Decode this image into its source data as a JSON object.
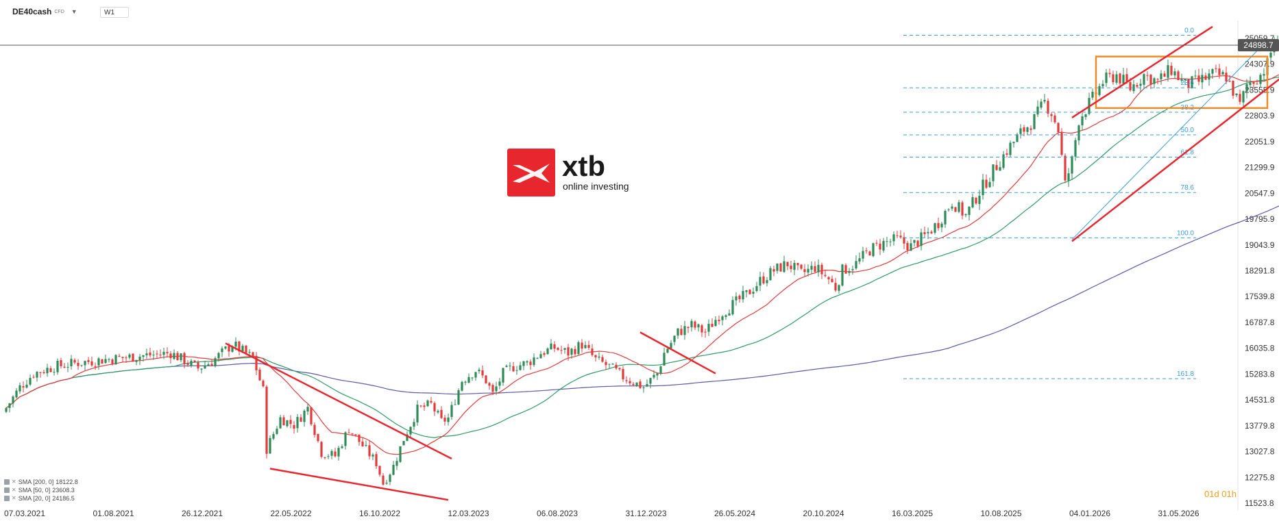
{
  "toolbar": {
    "symbol": "DE40cash",
    "symbol_sub": "CFD",
    "timeframe": "W1"
  },
  "logo": {
    "brand": "xtb",
    "tagline": "online investing",
    "color": "#e8262e"
  },
  "current_price": "24898.7",
  "timer": "01d 01h",
  "legend": [
    {
      "label": "SMA [200, 0]",
      "value": "18122.8",
      "color": "#5a5aa8"
    },
    {
      "label": "SMA [50, 0]",
      "value": "23608.3",
      "color": "#2e9a63"
    },
    {
      "label": "SMA [20, 0]",
      "value": "24186.5",
      "color": "#e23b3b"
    }
  ],
  "chart_data": {
    "type": "candlestick",
    "symbol": "DE40cash",
    "timeframe": "W1",
    "y_axis_ticks": [
      "25059.7",
      "24307.9",
      "23555.9",
      "22803.9",
      "22051.9",
      "21299.9",
      "20547.9",
      "19795.9",
      "19043.9",
      "18291.8",
      "17539.8",
      "16787.8",
      "16035.8",
      "15283.8",
      "14531.8",
      "13779.8",
      "13027.8",
      "12275.8",
      "11523.8"
    ],
    "x_axis_ticks": [
      "07.03.2021",
      "01.08.2021",
      "26.12.2021",
      "22.05.2022",
      "16.10.2022",
      "12.03.2023",
      "06.08.2023",
      "31.12.2023",
      "26.05.2024",
      "20.10.2024",
      "16.03.2025",
      "10.08.2025",
      "04.01.2026",
      "31.05.2026"
    ],
    "ylim": [
      11523.8,
      25059.7
    ],
    "last_price": 24898.7,
    "up_color": "#2e8b57",
    "down_color": "#e23b3b",
    "series_path": [
      [
        0,
        14300
      ],
      [
        4,
        14900
      ],
      [
        8,
        15300
      ],
      [
        14,
        15500
      ],
      [
        20,
        15600
      ],
      [
        28,
        15700
      ],
      [
        38,
        15800
      ],
      [
        48,
        15900
      ],
      [
        56,
        15450
      ],
      [
        60,
        15650
      ],
      [
        66,
        16150
      ],
      [
        72,
        15750
      ],
      [
        75,
        14800
      ],
      [
        76,
        13100
      ],
      [
        80,
        14000
      ],
      [
        84,
        13800
      ],
      [
        88,
        14300
      ],
      [
        92,
        13000
      ],
      [
        96,
        12900
      ],
      [
        100,
        13700
      ],
      [
        104,
        13200
      ],
      [
        108,
        12700
      ],
      [
        110,
        12100
      ],
      [
        113,
        12600
      ],
      [
        116,
        13400
      ],
      [
        120,
        14250
      ],
      [
        124,
        14400
      ],
      [
        127,
        13900
      ],
      [
        129,
        14000
      ],
      [
        133,
        15100
      ],
      [
        137,
        15400
      ],
      [
        140,
        15100
      ],
      [
        142,
        14700
      ],
      [
        145,
        15300
      ],
      [
        148,
        15500
      ],
      [
        152,
        15600
      ],
      [
        156,
        15900
      ],
      [
        160,
        16050
      ],
      [
        164,
        15900
      ],
      [
        168,
        16150
      ],
      [
        172,
        15700
      ],
      [
        176,
        15500
      ],
      [
        180,
        15200
      ],
      [
        184,
        15000
      ],
      [
        186,
        14900
      ],
      [
        190,
        15300
      ],
      [
        192,
        15900
      ],
      [
        196,
        16500
      ],
      [
        200,
        16700
      ],
      [
        204,
        16500
      ],
      [
        208,
        17000
      ],
      [
        212,
        17300
      ],
      [
        216,
        17600
      ],
      [
        220,
        18000
      ],
      [
        224,
        18300
      ],
      [
        228,
        18500
      ],
      [
        232,
        18200
      ],
      [
        236,
        18400
      ],
      [
        240,
        18050
      ],
      [
        242,
        17800
      ],
      [
        244,
        18300
      ],
      [
        248,
        18500
      ],
      [
        252,
        18900
      ],
      [
        256,
        19100
      ],
      [
        260,
        19200
      ],
      [
        264,
        19000
      ],
      [
        268,
        19300
      ],
      [
        272,
        19700
      ],
      [
        276,
        20300
      ],
      [
        280,
        19900
      ],
      [
        284,
        20600
      ],
      [
        288,
        21200
      ],
      [
        292,
        21800
      ],
      [
        296,
        22300
      ],
      [
        300,
        22700
      ],
      [
        303,
        23200
      ],
      [
        305,
        22900
      ],
      [
        307,
        22400
      ],
      [
        309,
        20800
      ],
      [
        311,
        21500
      ],
      [
        313,
        22700
      ],
      [
        317,
        23300
      ],
      [
        320,
        23800
      ],
      [
        324,
        24000
      ],
      [
        328,
        23600
      ],
      [
        332,
        24000
      ],
      [
        336,
        23800
      ],
      [
        340,
        24150
      ],
      [
        344,
        23700
      ],
      [
        348,
        23800
      ],
      [
        352,
        24000
      ],
      [
        356,
        23950
      ],
      [
        360,
        23100
      ],
      [
        362,
        23700
      ],
      [
        366,
        24000
      ],
      [
        368,
        24300
      ],
      [
        370,
        25000
      ],
      [
        372,
        24700
      ]
    ],
    "sma": [
      {
        "name": "SMA [200, 0]",
        "period": 200,
        "color": "#5a5aa8"
      },
      {
        "name": "SMA [50, 0]",
        "period": 50,
        "color": "#2e9a63"
      },
      {
        "name": "SMA [20, 0]",
        "period": 20,
        "color": "#e23b3b"
      }
    ],
    "fibonacci": {
      "color": "#3a9ad9",
      "levels": [
        {
          "label": "0.0",
          "price": 25150
        },
        {
          "label": "23.6",
          "price": 23620
        },
        {
          "label": "38.2",
          "price": 22910
        },
        {
          "label": "50.0",
          "price": 22250
        },
        {
          "label": "61.8",
          "price": 21600
        },
        {
          "label": "78.6",
          "price": 20570
        },
        {
          "label": "100.0",
          "price": 19250
        },
        {
          "label": "161.8",
          "price": 15150
        }
      ]
    },
    "trendlines": [
      {
        "color": "#e8262e",
        "from": [
          64,
          16180
        ],
        "to": [
          130,
          12820
        ]
      },
      {
        "color": "#e8262e",
        "from": [
          77,
          12530
        ],
        "to": [
          129,
          11620
        ]
      },
      {
        "color": "#e8262e",
        "from": [
          185,
          16500
        ],
        "to": [
          207,
          15300
        ]
      },
      {
        "color": "#e8262e",
        "from": [
          311,
          22750
        ],
        "to": [
          352,
          25400
        ]
      },
      {
        "color": "#e8262e",
        "from": [
          311,
          19150
        ],
        "to": [
          378,
          24380
        ]
      },
      {
        "color": "#e8262e",
        "from": [
          376,
          24180
        ],
        "to": [
          385,
          24180
        ]
      }
    ],
    "blue_line": {
      "color": "#3a9ad9",
      "from": [
        311,
        19200
      ],
      "to": [
        368,
        25000
      ]
    },
    "range_box": {
      "color": "#f08a24",
      "from": [
        318,
        24530
      ],
      "to": [
        368,
        23030
      ]
    }
  }
}
